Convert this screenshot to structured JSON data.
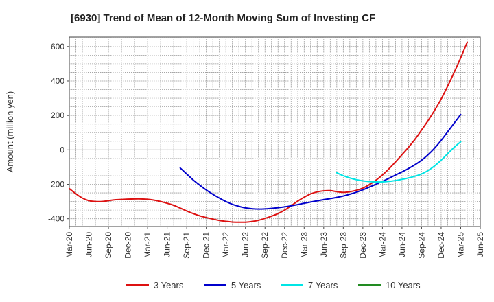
{
  "chart_data": {
    "type": "line",
    "title": "[6930]  Trend of Mean of 12-Month Moving Sum of Investing CF",
    "xlabel": "",
    "ylabel": "Amount (million yen)",
    "x_ticks": [
      "Mar-20",
      "Jun-20",
      "Sep-20",
      "Dec-20",
      "Mar-21",
      "Jun-21",
      "Sep-21",
      "Dec-21",
      "Mar-22",
      "Jun-22",
      "Sep-22",
      "Dec-22",
      "Mar-23",
      "Jun-23",
      "Sep-23",
      "Dec-23",
      "Mar-24",
      "Jun-24",
      "Sep-24",
      "Dec-24",
      "Mar-25",
      "Jun-25"
    ],
    "y_ticks": [
      600,
      400,
      200,
      0,
      -200,
      -400
    ],
    "ylim": [
      -445,
      655
    ],
    "grid": true,
    "legend_position": "bottom",
    "series": [
      {
        "name": "3 Years",
        "color": "#dd1111",
        "points": [
          [
            "Mar-20",
            -225
          ],
          [
            "Apr-20",
            -255
          ],
          [
            "May-20",
            -280
          ],
          [
            "Jun-20",
            -295
          ],
          [
            "Jul-20",
            -300
          ],
          [
            "Aug-20",
            -300
          ],
          [
            "Sep-20",
            -295
          ],
          [
            "Oct-20",
            -290
          ],
          [
            "Nov-20",
            -288
          ],
          [
            "Dec-20",
            -286
          ],
          [
            "Jan-21",
            -285
          ],
          [
            "Feb-21",
            -285
          ],
          [
            "Mar-21",
            -287
          ],
          [
            "Apr-21",
            -292
          ],
          [
            "May-21",
            -300
          ],
          [
            "Jun-21",
            -310
          ],
          [
            "Jul-21",
            -322
          ],
          [
            "Aug-21",
            -338
          ],
          [
            "Sep-21",
            -355
          ],
          [
            "Oct-21",
            -370
          ],
          [
            "Nov-21",
            -383
          ],
          [
            "Dec-21",
            -393
          ],
          [
            "Jan-22",
            -402
          ],
          [
            "Feb-22",
            -410
          ],
          [
            "Mar-22",
            -415
          ],
          [
            "Apr-22",
            -419
          ],
          [
            "May-22",
            -420
          ],
          [
            "Jun-22",
            -420
          ],
          [
            "Jul-22",
            -416
          ],
          [
            "Aug-22",
            -409
          ],
          [
            "Sep-22",
            -398
          ],
          [
            "Oct-22",
            -385
          ],
          [
            "Nov-22",
            -370
          ],
          [
            "Dec-22",
            -350
          ],
          [
            "Jan-23",
            -325
          ],
          [
            "Feb-23",
            -298
          ],
          [
            "Mar-23",
            -275
          ],
          [
            "Apr-23",
            -256
          ],
          [
            "May-23",
            -244
          ],
          [
            "Jun-23",
            -238
          ],
          [
            "Jul-23",
            -237
          ],
          [
            "Aug-23",
            -243
          ],
          [
            "Sep-23",
            -247
          ],
          [
            "Oct-23",
            -243
          ],
          [
            "Nov-23",
            -235
          ],
          [
            "Dec-23",
            -222
          ],
          [
            "Jan-24",
            -202
          ],
          [
            "Feb-24",
            -176
          ],
          [
            "Mar-24",
            -146
          ],
          [
            "Apr-24",
            -110
          ],
          [
            "May-24",
            -70
          ],
          [
            "Jun-24",
            -28
          ],
          [
            "Jul-24",
            15
          ],
          [
            "Aug-24",
            62
          ],
          [
            "Sep-24",
            115
          ],
          [
            "Oct-24",
            170
          ],
          [
            "Nov-24",
            230
          ],
          [
            "Dec-24",
            295
          ],
          [
            "Jan-25",
            370
          ],
          [
            "Feb-25",
            450
          ],
          [
            "Mar-25",
            535
          ],
          [
            "Apr-25",
            625
          ]
        ]
      },
      {
        "name": "5 Years",
        "color": "#0000cc",
        "points": [
          [
            "Aug-21",
            -105
          ],
          [
            "Sep-21",
            -140
          ],
          [
            "Oct-21",
            -175
          ],
          [
            "Nov-21",
            -205
          ],
          [
            "Dec-21",
            -233
          ],
          [
            "Jan-22",
            -258
          ],
          [
            "Feb-22",
            -280
          ],
          [
            "Mar-22",
            -300
          ],
          [
            "Apr-22",
            -316
          ],
          [
            "May-22",
            -328
          ],
          [
            "Jun-22",
            -337
          ],
          [
            "Jul-22",
            -342
          ],
          [
            "Aug-22",
            -344
          ],
          [
            "Sep-22",
            -343
          ],
          [
            "Oct-22",
            -340
          ],
          [
            "Nov-22",
            -336
          ],
          [
            "Dec-22",
            -331
          ],
          [
            "Jan-23",
            -325
          ],
          [
            "Feb-23",
            -318
          ],
          [
            "Mar-23",
            -310
          ],
          [
            "Apr-23",
            -303
          ],
          [
            "May-23",
            -296
          ],
          [
            "Jun-23",
            -289
          ],
          [
            "Jul-23",
            -283
          ],
          [
            "Aug-23",
            -276
          ],
          [
            "Sep-23",
            -268
          ],
          [
            "Oct-23",
            -258
          ],
          [
            "Nov-23",
            -246
          ],
          [
            "Dec-23",
            -232
          ],
          [
            "Jan-24",
            -216
          ],
          [
            "Feb-24",
            -200
          ],
          [
            "Mar-24",
            -183
          ],
          [
            "Apr-24",
            -165
          ],
          [
            "May-24",
            -146
          ],
          [
            "Jun-24",
            -128
          ],
          [
            "Jul-24",
            -108
          ],
          [
            "Aug-24",
            -86
          ],
          [
            "Sep-24",
            -60
          ],
          [
            "Oct-24",
            -28
          ],
          [
            "Nov-24",
            10
          ],
          [
            "Dec-24",
            55
          ],
          [
            "Jan-25",
            105
          ],
          [
            "Feb-25",
            155
          ],
          [
            "Mar-25",
            205
          ]
        ]
      },
      {
        "name": "7 Years",
        "color": "#00e5e5",
        "points": [
          [
            "Aug-23",
            -133
          ],
          [
            "Sep-23",
            -150
          ],
          [
            "Oct-23",
            -163
          ],
          [
            "Nov-23",
            -173
          ],
          [
            "Dec-23",
            -180
          ],
          [
            "Jan-24",
            -184
          ],
          [
            "Feb-24",
            -186
          ],
          [
            "Mar-24",
            -186
          ],
          [
            "Apr-24",
            -183
          ],
          [
            "May-24",
            -178
          ],
          [
            "Jun-24",
            -171
          ],
          [
            "Jul-24",
            -163
          ],
          [
            "Aug-24",
            -153
          ],
          [
            "Sep-24",
            -140
          ],
          [
            "Oct-24",
            -120
          ],
          [
            "Nov-24",
            -93
          ],
          [
            "Dec-24",
            -60
          ],
          [
            "Jan-25",
            -22
          ],
          [
            "Feb-25",
            15
          ],
          [
            "Mar-25",
            47
          ]
        ]
      },
      {
        "name": "10 Years",
        "color": "#228b22",
        "points": []
      }
    ]
  }
}
